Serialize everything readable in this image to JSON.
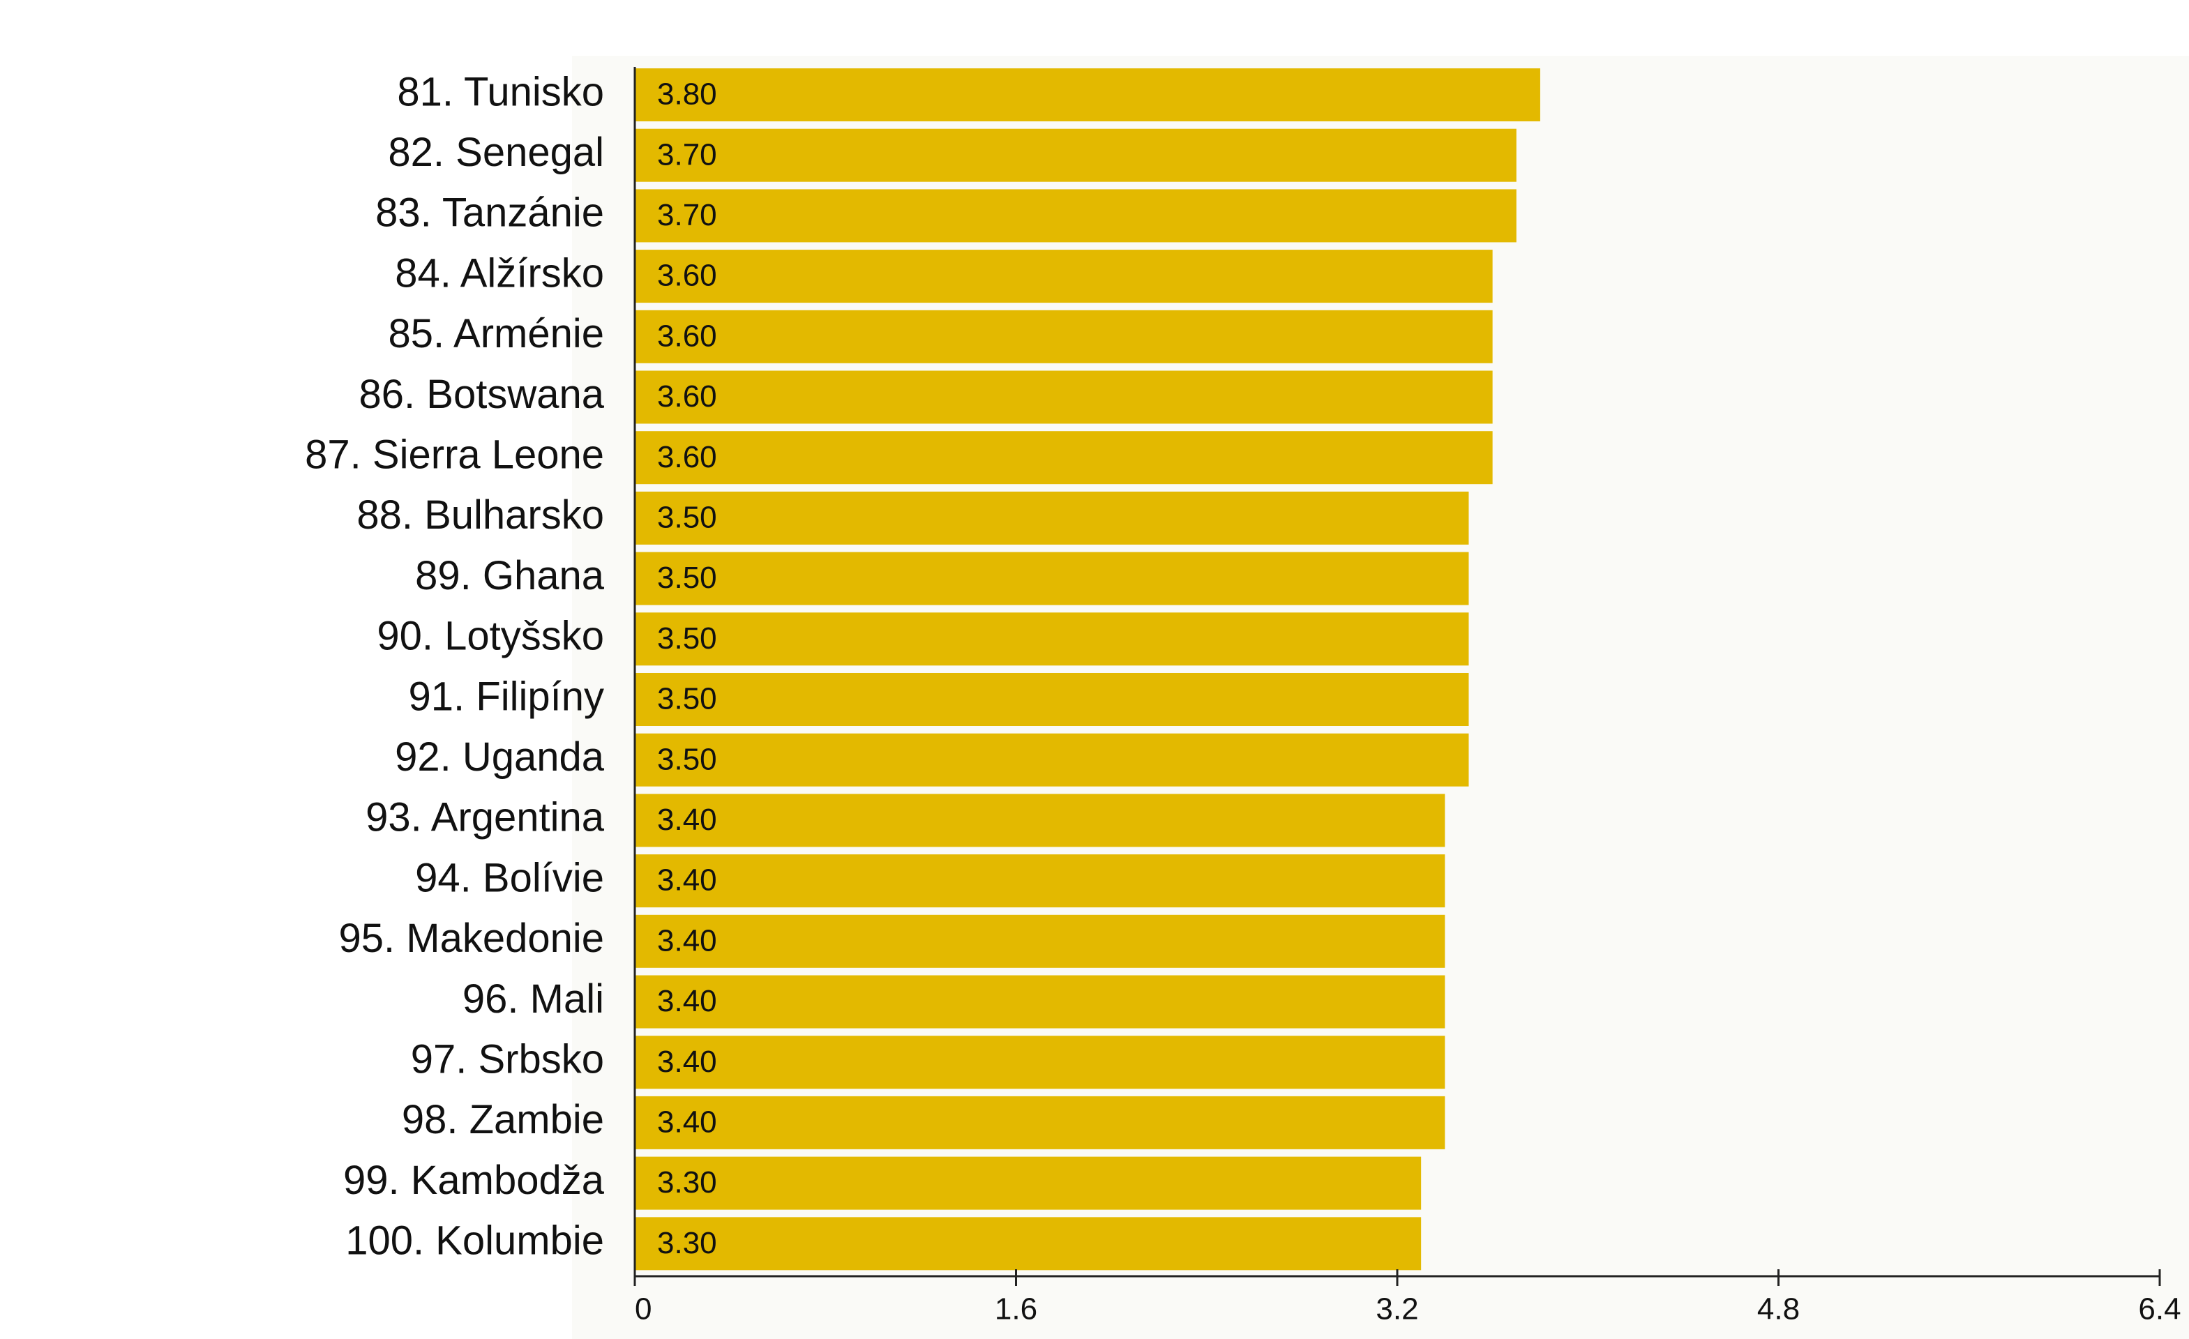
{
  "chart_data": {
    "type": "bar",
    "orientation": "horizontal",
    "categories": [
      "81. Tunisko",
      "82. Senegal",
      "83. Tanzánie",
      "84. Alžírsko",
      "85. Arménie",
      "86. Botswana",
      "87. Sierra Leone",
      "88. Bulharsko",
      "89. Ghana",
      "90. Lotyšsko",
      "91. Filipíny",
      "92. Uganda",
      "93. Argentina",
      "94. Bolívie",
      "95. Makedonie",
      "96. Mali",
      "97. Srbsko",
      "98. Zambie",
      "99. Kambodža",
      "100. Kolumbie"
    ],
    "values": [
      3.8,
      3.7,
      3.7,
      3.6,
      3.6,
      3.6,
      3.6,
      3.5,
      3.5,
      3.5,
      3.5,
      3.5,
      3.4,
      3.4,
      3.4,
      3.4,
      3.4,
      3.4,
      3.3,
      3.3
    ],
    "value_labels": [
      "3.80",
      "3.70",
      "3.70",
      "3.60",
      "3.60",
      "3.60",
      "3.60",
      "3.50",
      "3.50",
      "3.50",
      "3.50",
      "3.50",
      "3.40",
      "3.40",
      "3.40",
      "3.40",
      "3.40",
      "3.40",
      "3.30",
      "3.30"
    ],
    "color": "#e3b900",
    "xlim": [
      0,
      6.4
    ],
    "xticks": [
      0,
      1.6,
      3.2,
      4.8,
      6.4
    ]
  }
}
